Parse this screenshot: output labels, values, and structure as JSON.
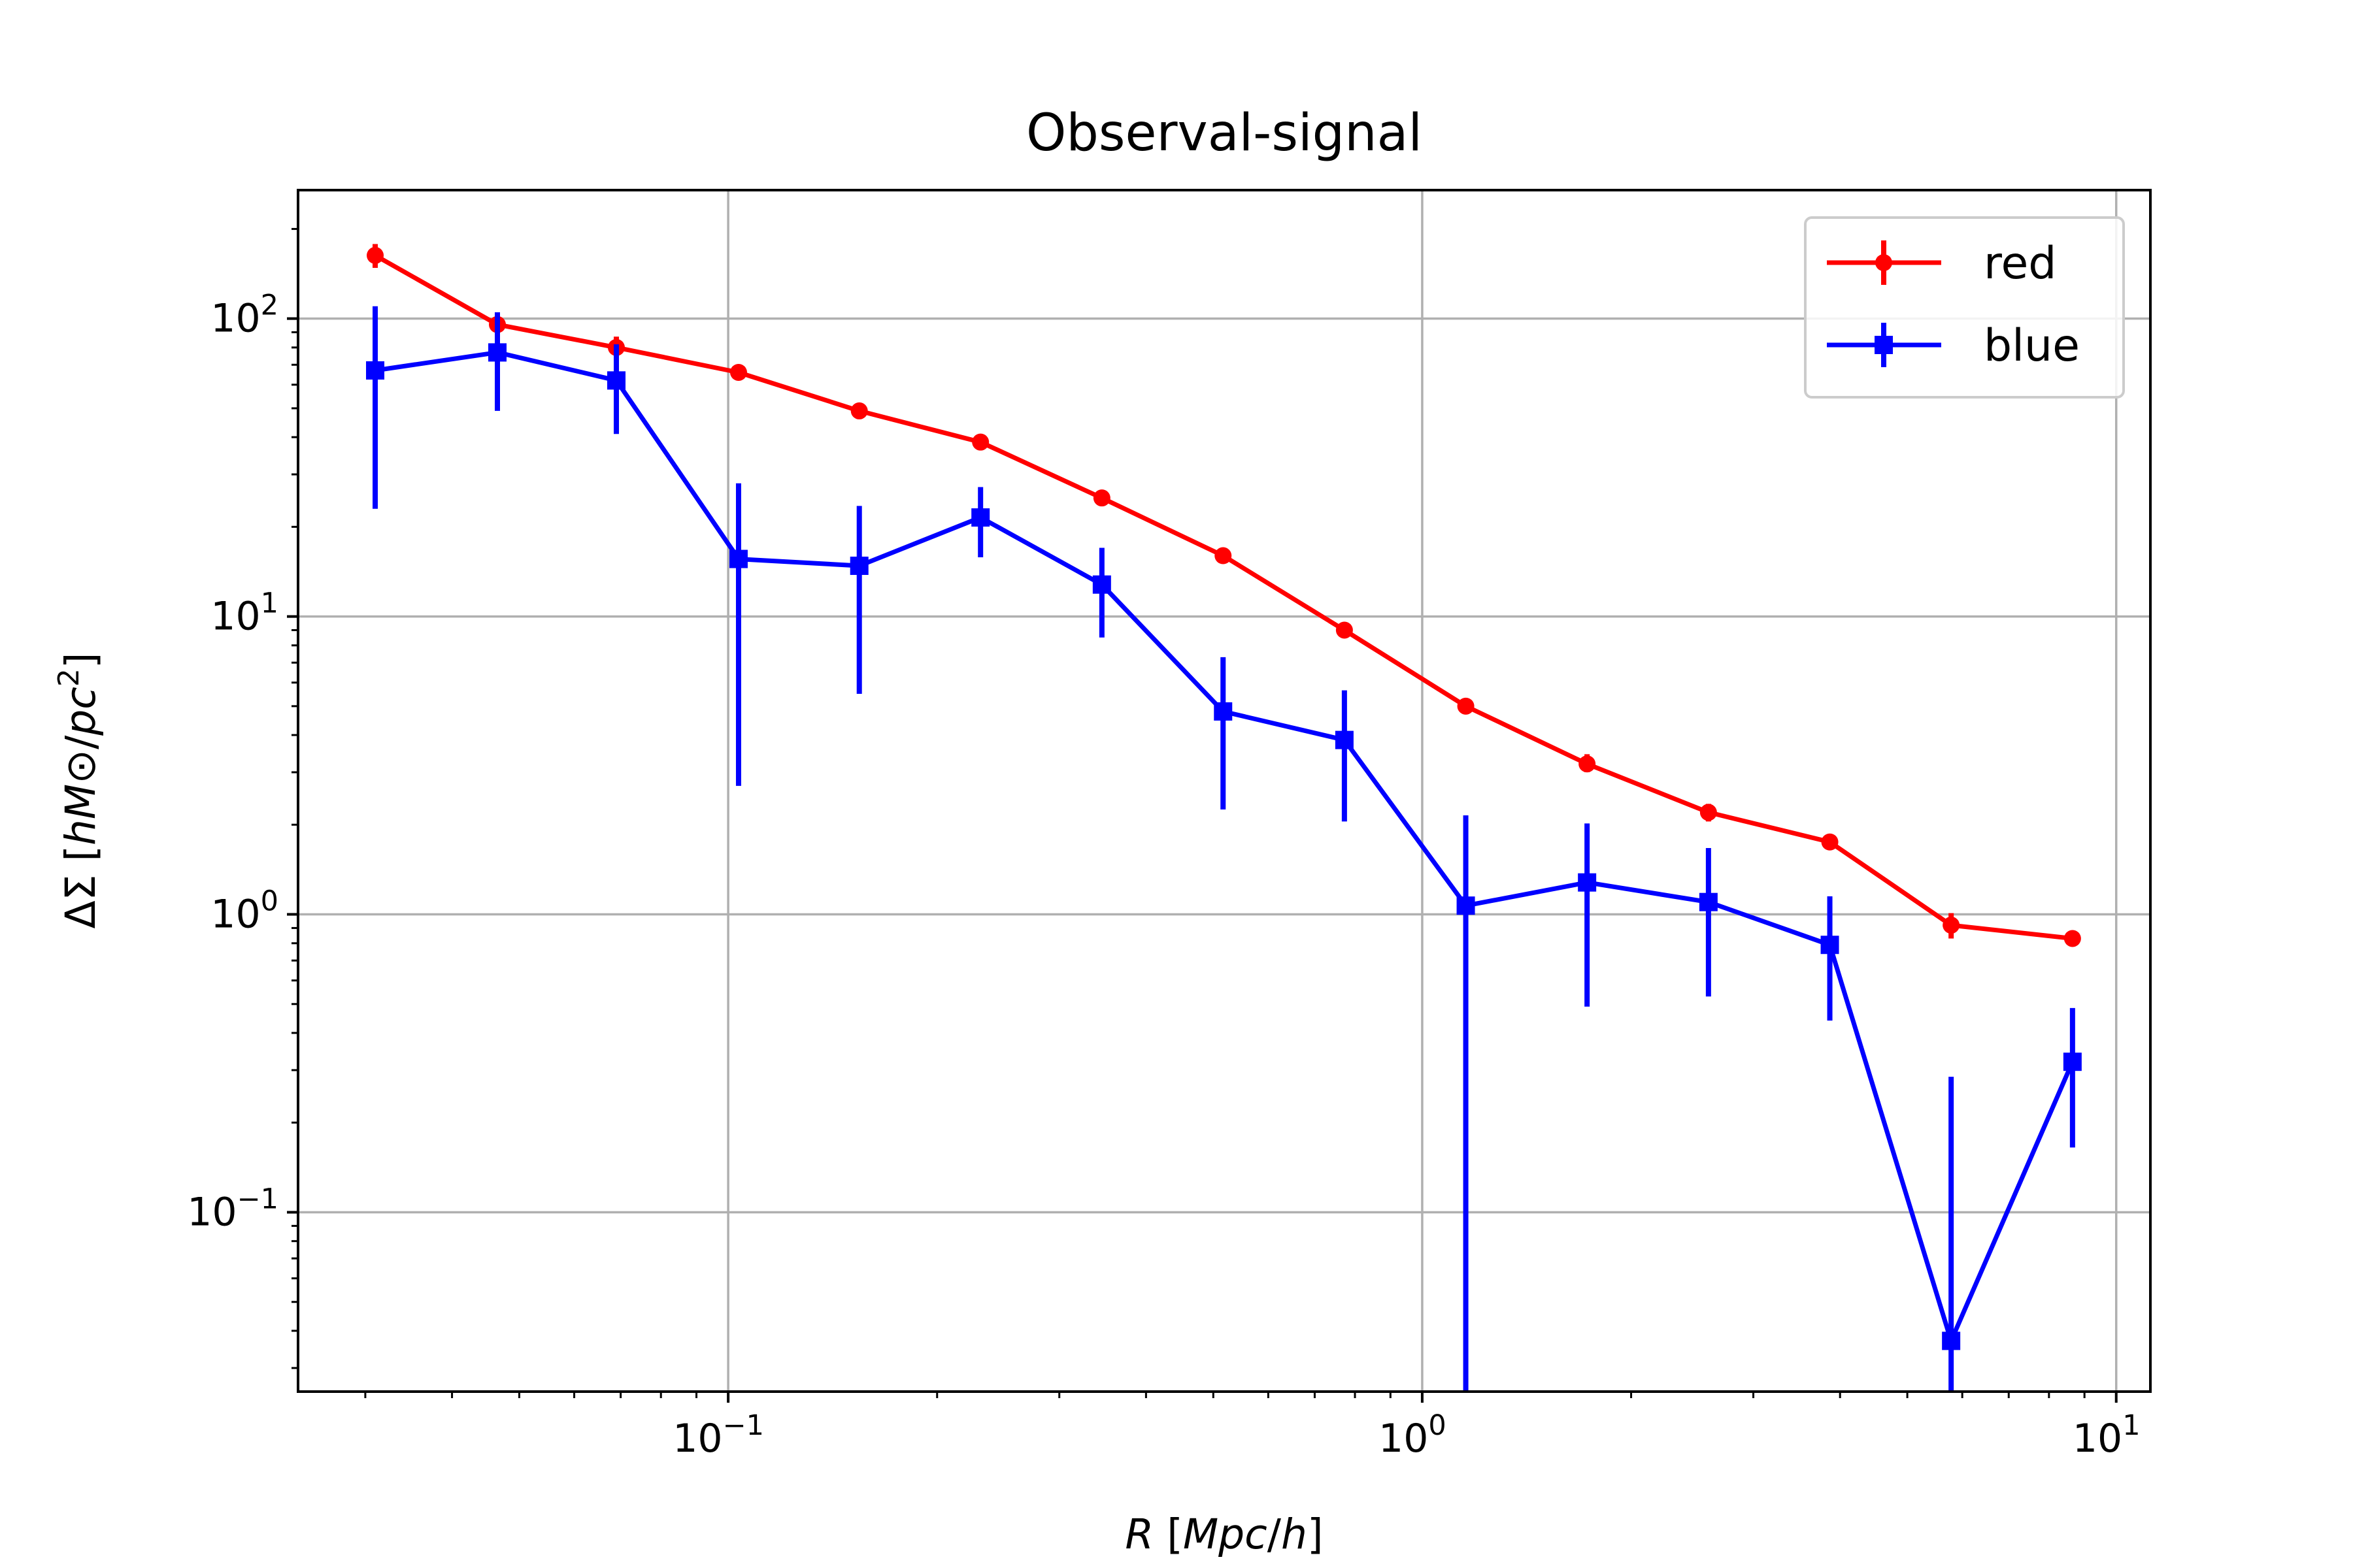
{
  "chart_data": {
    "type": "line",
    "title": "Observal-signal",
    "xlabel": "R [Mpc/h]",
    "ylabel": "ΔΣ [hM⊙/pc²]",
    "xscale": "log",
    "yscale": "log",
    "xlim": [
      0.024,
      11.2
    ],
    "ylim": [
      0.025,
      270
    ],
    "grid": true,
    "legend_position": "top-right",
    "x_ticks": [
      {
        "value": 0.1,
        "base": "10",
        "exp": "−1"
      },
      {
        "value": 1,
        "base": "10",
        "exp": "0"
      },
      {
        "value": 10,
        "base": "10",
        "exp": "1"
      }
    ],
    "y_ticks": [
      {
        "value": 0.1,
        "base": "10",
        "exp": "−1"
      },
      {
        "value": 1,
        "base": "10",
        "exp": "0"
      },
      {
        "value": 10,
        "base": "10",
        "exp": "1"
      },
      {
        "value": 100,
        "base": "10",
        "exp": "2"
      }
    ],
    "series": [
      {
        "name": "red",
        "color": "#ff0000",
        "marker": "circle",
        "x": [
          0.031,
          0.0465,
          0.069,
          0.1035,
          0.1545,
          0.231,
          0.3455,
          0.5165,
          0.7725,
          1.1555,
          1.728,
          2.585,
          3.8665,
          5.7825,
          8.65
        ],
        "y": [
          163,
          95.5,
          80,
          66,
          49,
          38.5,
          25,
          16,
          9,
          5,
          3.2,
          2.2,
          1.75,
          0.92,
          0.83
        ],
        "yerr_low": [
          148,
          88,
          74,
          62,
          46,
          36.5,
          24,
          15.3,
          8.6,
          4.7,
          3.0,
          2.05,
          1.68,
          0.83,
          0.79
        ],
        "yerr_high": [
          178,
          104,
          87,
          70,
          52,
          40.5,
          26,
          16.7,
          9.4,
          5.3,
          3.45,
          2.35,
          1.82,
          1.01,
          0.87
        ]
      },
      {
        "name": "blue",
        "color": "#0000ff",
        "marker": "square",
        "x": [
          0.031,
          0.0465,
          0.069,
          0.1035,
          0.1545,
          0.231,
          0.3455,
          0.5165,
          0.7725,
          1.1555,
          1.728,
          2.585,
          3.8665,
          5.7825,
          8.65
        ],
        "y": [
          67,
          77,
          62,
          15.6,
          14.8,
          21.5,
          12.8,
          4.8,
          3.85,
          1.07,
          1.28,
          1.1,
          0.79,
          0.037,
          0.32
        ],
        "yerr_low": [
          23,
          49,
          41,
          2.7,
          5.5,
          15.8,
          8.5,
          2.25,
          2.05,
          0.025,
          0.49,
          0.53,
          0.44,
          0.025,
          0.165
        ],
        "yerr_high": [
          110,
          105,
          82,
          28,
          23.5,
          27.2,
          17,
          7.3,
          5.65,
          2.15,
          2.02,
          1.67,
          1.15,
          0.285,
          0.485
        ]
      }
    ]
  }
}
